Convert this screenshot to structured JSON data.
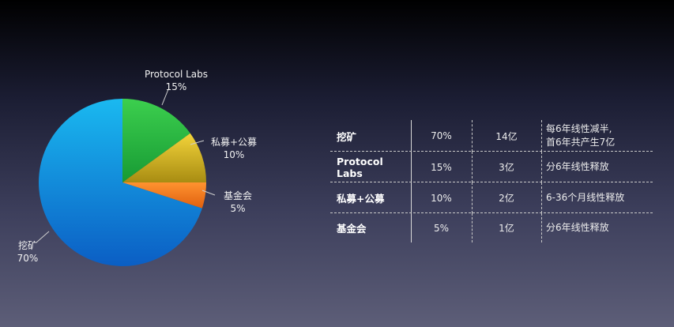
{
  "chart_data": {
    "type": "pie",
    "slices": [
      {
        "label": "Protocol Labs",
        "value": 15,
        "value_label": "15%",
        "color": "#2fb944"
      },
      {
        "label": "私募+公募",
        "value": 10,
        "value_label": "10%",
        "color": "#d6b626"
      },
      {
        "label": "基金会",
        "value": 5,
        "value_label": "5%",
        "color": "#f07d1e"
      },
      {
        "label": "挖矿",
        "value": 70,
        "value_label": "70%",
        "color": "#1a8fe0"
      }
    ]
  },
  "table": {
    "rows": [
      {
        "name": "挖矿",
        "percent": "70%",
        "amount": "14亿",
        "note_lines": [
          "每6年线性减半,",
          "首6年共产生7亿"
        ]
      },
      {
        "name": "Protocol Labs",
        "percent": "15%",
        "amount": "3亿",
        "note_lines": [
          "分6年线性释放"
        ]
      },
      {
        "name": "私募+公募",
        "percent": "10%",
        "amount": "2亿",
        "note_lines": [
          "6-36个月线性释放"
        ]
      },
      {
        "name": "基金会",
        "percent": "5%",
        "amount": "1亿",
        "note_lines": [
          "分6年线性释放"
        ]
      }
    ]
  }
}
